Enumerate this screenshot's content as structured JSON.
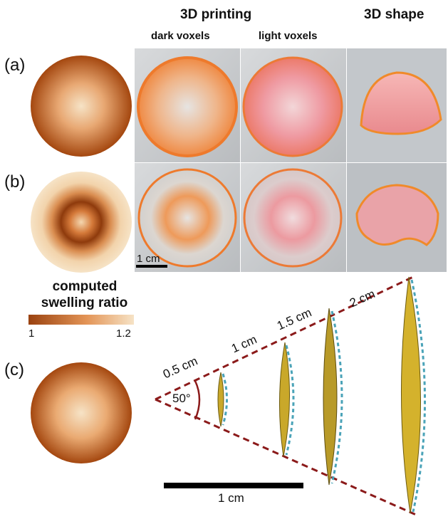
{
  "header": {
    "printing": "3D printing",
    "dark_voxels": "dark voxels",
    "light_voxels": "light voxels",
    "shape": "3D shape"
  },
  "panels": {
    "a": "(a)",
    "b": "(b)",
    "c": "(c)"
  },
  "scale_top": "1 cm",
  "legend": {
    "line1": "computed",
    "line2": "swelling ratio",
    "min": "1",
    "max": "1.2",
    "color_low": "#9a4210",
    "color_high": "#f6e3c6"
  },
  "panel_c": {
    "angle": "50°",
    "distances": [
      "0.5 cm",
      "1 cm",
      "1.5 cm",
      "2 cm"
    ],
    "scale": "1 cm"
  },
  "colors": {
    "print_orange": "#ee7a2c",
    "print_pink": "#ee8a96",
    "guide_line": "#8b1a1a",
    "fit_curve": "#4aa3b8",
    "lens_yellow": "#c9a82a"
  }
}
